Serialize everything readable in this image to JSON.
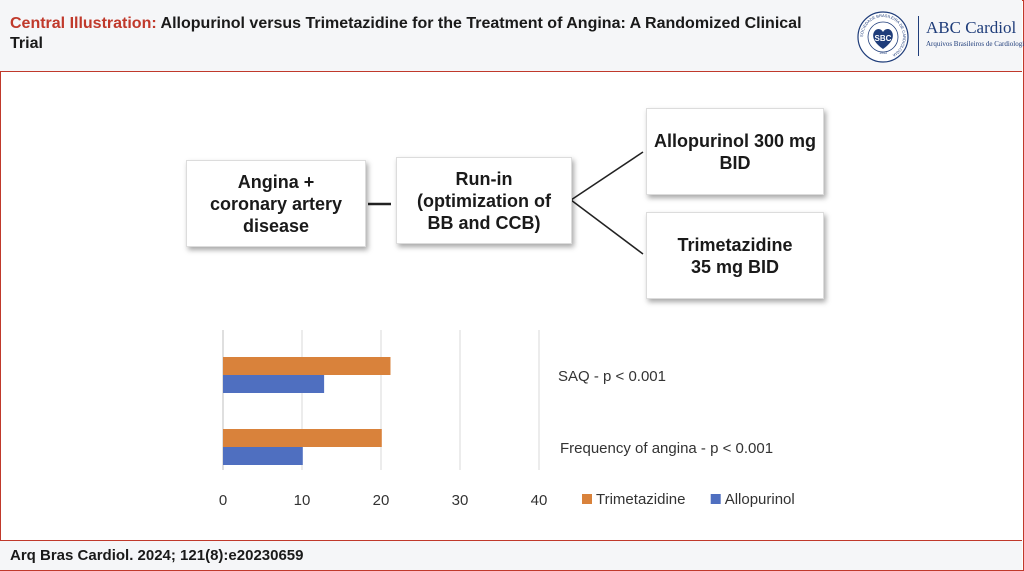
{
  "header": {
    "title_prefix": "Central Illustration:",
    "title_rest": "Allopurinol versus Trimetazidine for the Treatment of Angina: A Randomized Clinical Trial",
    "logo_badge": "SBC",
    "logo_ring": "SOCIEDADE BRASILEIRA DE CARDIOLOGIA",
    "logo_year": "1943",
    "logo_name": "ABC Cardiol",
    "logo_sub": "Arquivos Brasileiros de Cardiologia"
  },
  "flow": {
    "box1": "Angina +\ncoronary artery\ndisease",
    "box2": "Run-in\n(optimization of\nBB and CCB)",
    "box3": "Allopurinol 300 mg\nBID",
    "box4": "Trimetazidine\n35 mg BID"
  },
  "chart_data": {
    "type": "bar",
    "orientation": "horizontal",
    "categories": [
      "SAQ - p < 0.001",
      "Frequency of angina - p < 0.001"
    ],
    "series": [
      {
        "name": "Trimetazidine",
        "color": "#d9823b",
        "values": [
          21.2,
          20.1
        ]
      },
      {
        "name": "Allopurinol",
        "color": "#4f6fc0",
        "values": [
          12.8,
          10.1
        ]
      }
    ],
    "xticks": [
      0,
      10,
      20,
      30,
      40
    ],
    "xlim": [
      0,
      40
    ],
    "grid": true,
    "legend_position": "bottom-right"
  },
  "footer": {
    "citation": "Arq Bras Cardiol. 2024; 121(8):e20230659"
  }
}
